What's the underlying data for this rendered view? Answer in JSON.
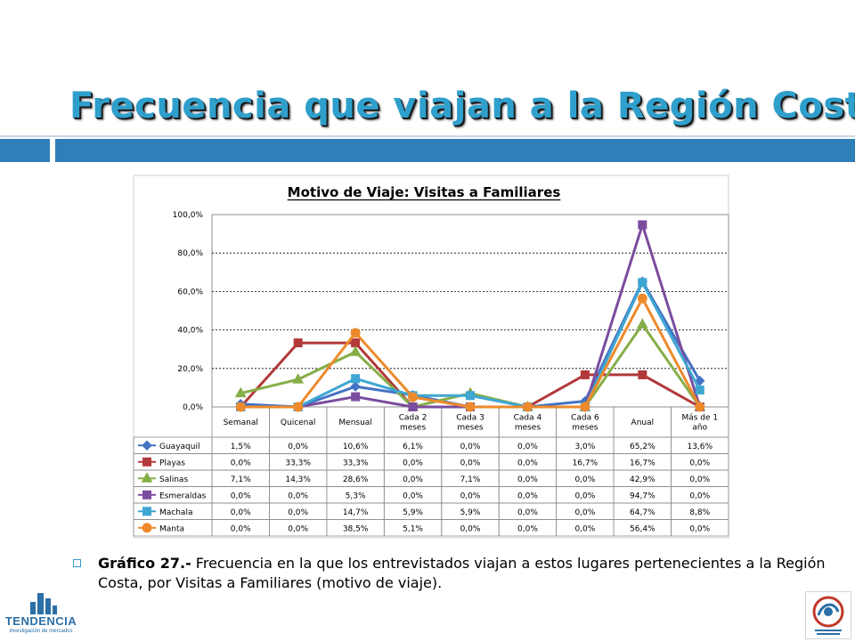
{
  "slide_title": "Frecuencia que viajan a la Región Costa",
  "caption_bold": "Gráfico 27.-",
  "caption_text": " Frecuencia en la que los entrevistados viajan a estos lugares pertenecientes a la Región Costa, por Visitas a Familiares (motivo de viaje).",
  "logo_left_text": "TENDENCIA",
  "logo_left_sub": "investigación de mercados",
  "colors": {
    "title": "#2f9fcc",
    "band": "#2f7fb8",
    "Guayaquil": "#4472c4",
    "Playas": "#b2393a",
    "Salinas": "#86ae48",
    "Esmeraldas": "#7a4c9e",
    "Machala": "#3fa6d2",
    "Manta": "#ee8a2c"
  },
  "chart_data": {
    "type": "line",
    "title": "Motivo de Viaje:  Visitas a Familiares",
    "categories": [
      "Semanal",
      "Quicenal",
      "Mensual",
      "Cada 2\nmeses",
      "Cada 3\nmeses",
      "Cada 4\nmeses",
      "Cada 6\nmeses",
      "Anual",
      "Más de 1\naño"
    ],
    "ylim": [
      0,
      100
    ],
    "yticks": [
      "0,0%",
      "20,0%",
      "40,0%",
      "60,0%",
      "80,0%",
      "100,0%"
    ],
    "grid": true,
    "legend": "data-table",
    "series": [
      {
        "name": "Guayaquil",
        "marker": "diamond",
        "values": [
          1.5,
          0.0,
          10.6,
          6.1,
          0.0,
          0.0,
          3.0,
          65.2,
          13.6
        ],
        "labels": [
          "1,5%",
          "0,0%",
          "10,6%",
          "6,1%",
          "0,0%",
          "0,0%",
          "3,0%",
          "65,2%",
          "13,6%"
        ]
      },
      {
        "name": "Playas",
        "marker": "square",
        "values": [
          0.0,
          33.3,
          33.3,
          0.0,
          0.0,
          0.0,
          16.7,
          16.7,
          0.0
        ],
        "labels": [
          "0,0%",
          "33,3%",
          "33,3%",
          "0,0%",
          "0,0%",
          "0,0%",
          "16,7%",
          "16,7%",
          "0,0%"
        ]
      },
      {
        "name": "Salinas",
        "marker": "triangle",
        "values": [
          7.1,
          14.3,
          28.6,
          0.0,
          7.1,
          0.0,
          0.0,
          42.9,
          0.0
        ],
        "labels": [
          "7,1%",
          "14,3%",
          "28,6%",
          "0,0%",
          "7,1%",
          "0,0%",
          "0,0%",
          "42,9%",
          "0,0%"
        ]
      },
      {
        "name": "Esmeraldas",
        "marker": "square",
        "values": [
          0.0,
          0.0,
          5.3,
          0.0,
          0.0,
          0.0,
          0.0,
          94.7,
          0.0
        ],
        "labels": [
          "0,0%",
          "0,0%",
          "5,3%",
          "0,0%",
          "0,0%",
          "0,0%",
          "0,0%",
          "94,7%",
          "0,0%"
        ]
      },
      {
        "name": "Machala",
        "marker": "square",
        "values": [
          0.0,
          0.0,
          14.7,
          5.9,
          5.9,
          0.0,
          0.0,
          64.7,
          8.8
        ],
        "labels": [
          "0,0%",
          "0,0%",
          "14,7%",
          "5,9%",
          "5,9%",
          "0,0%",
          "0,0%",
          "64,7%",
          "8,8%"
        ]
      },
      {
        "name": "Manta",
        "marker": "circle",
        "values": [
          0.0,
          0.0,
          38.5,
          5.1,
          0.0,
          0.0,
          0.0,
          56.4,
          0.0
        ],
        "labels": [
          "0,0%",
          "0,0%",
          "38,5%",
          "5,1%",
          "0,0%",
          "0,0%",
          "0,0%",
          "56,4%",
          "0,0%"
        ]
      }
    ]
  }
}
